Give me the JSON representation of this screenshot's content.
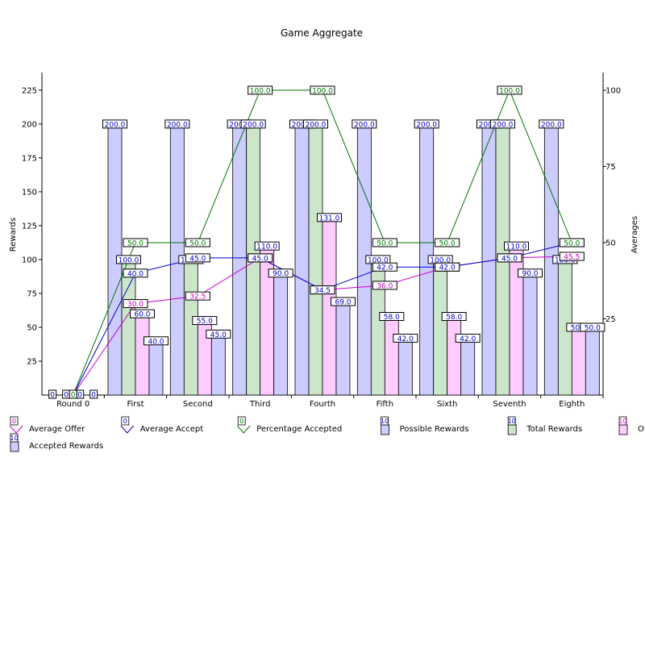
{
  "chart_data": {
    "type": "bar",
    "title": "Game Aggregate",
    "ylabel": "Rewards",
    "y2label": "Averages",
    "ylim": [
      0,
      238
    ],
    "y2lim": [
      0,
      105.8
    ],
    "yticks": [
      25,
      50,
      75,
      100,
      125,
      150,
      175,
      200,
      225
    ],
    "y2ticks": [
      25,
      50,
      75,
      100
    ],
    "grid": false,
    "legend_position": "bottom",
    "categories": [
      "Round 0",
      "First",
      "Second",
      "Third",
      "Fourth",
      "Fifth",
      "Sixth",
      "Seventh",
      "Eighth"
    ],
    "bar_series": [
      {
        "name": "Possible Rewards",
        "color": "#ccccff",
        "values": [
          0,
          200,
          200,
          200,
          200,
          200,
          200,
          200,
          200
        ],
        "labels": [
          "0",
          "200.0",
          "200.0",
          "200.0",
          "200.0",
          "200.0",
          "200.0",
          "200.0",
          "200.0"
        ]
      },
      {
        "name": "Total Rewards",
        "color": "#cce6cc",
        "values": [
          0,
          100,
          100,
          200,
          200,
          100,
          100,
          200,
          100
        ],
        "labels": [
          "0",
          "100.0",
          "100.0",
          "200.0",
          "200.0",
          "100.0",
          "100.0",
          "200.0",
          "100.0"
        ]
      },
      {
        "name": "Offered Rewards",
        "color": "#ffccff",
        "values": [
          0,
          60,
          55,
          110,
          131,
          58,
          58,
          110,
          50
        ],
        "labels": [
          "0",
          "60.0",
          "55.0",
          "110.0",
          "131.0",
          "58.0",
          "58.0",
          "110.0",
          "50.0"
        ]
      },
      {
        "name": "Accepted Rewards",
        "color": "#ccccff",
        "values": [
          0,
          40,
          45,
          90,
          69,
          42,
          42,
          90,
          50
        ],
        "labels": [
          "0",
          "40.0",
          "45.0",
          "90.0",
          "69.0",
          "42.0",
          "42.0",
          "90.0",
          "50.0"
        ]
      }
    ],
    "line_series": [
      {
        "name": "Average Offer",
        "color": "#cc00cc",
        "values": [
          0,
          30,
          32.5,
          45,
          34.5,
          36,
          42,
          45,
          45.5
        ],
        "labels": [
          "0",
          "30.0",
          "32.5",
          "45.0",
          "34.5",
          "36.0",
          "42.0",
          "45.0",
          "45.5"
        ]
      },
      {
        "name": "Average Accept",
        "color": "#0000cc",
        "values": [
          0,
          40,
          45,
          45,
          34.5,
          42,
          42,
          45,
          50
        ],
        "labels": [
          "0",
          "40.0",
          "45.0",
          "45.0",
          "34.5",
          "42.0",
          "42.0",
          "45.0",
          "50.0"
        ]
      },
      {
        "name": "Percentage Accepted",
        "color": "#007700",
        "values": [
          0,
          50,
          50,
          100,
          100,
          50,
          50,
          100,
          50
        ],
        "labels": [
          "0",
          "50.0",
          "50.0",
          "100.0",
          "100.0",
          "50.0",
          "50.0",
          "100.0",
          "50.0"
        ]
      }
    ],
    "legend": [
      {
        "name": "Average Offer",
        "kind": "line",
        "color": "#cc00cc",
        "fill": "#ffffff",
        "badge": "0"
      },
      {
        "name": "Average Accept",
        "kind": "line",
        "color": "#0000cc",
        "fill": "#ffffff",
        "badge": "0"
      },
      {
        "name": "Percentage Accepted",
        "kind": "line",
        "color": "#007700",
        "fill": "#ffffff",
        "badge": "0"
      },
      {
        "name": "Possible Rewards",
        "kind": "bar",
        "color": "#0000cc",
        "fill": "#ccccff",
        "badge": "10"
      },
      {
        "name": "Total Rewards",
        "kind": "bar",
        "color": "#0000cc",
        "fill": "#cce6cc",
        "badge": "10"
      },
      {
        "name": "Offered Rewards",
        "kind": "bar",
        "color": "#cc00cc",
        "fill": "#ffccff",
        "badge": "10"
      },
      {
        "name": "Accepted Rewards",
        "kind": "bar",
        "color": "#0000cc",
        "fill": "#ccccff",
        "badge": "10"
      }
    ]
  }
}
